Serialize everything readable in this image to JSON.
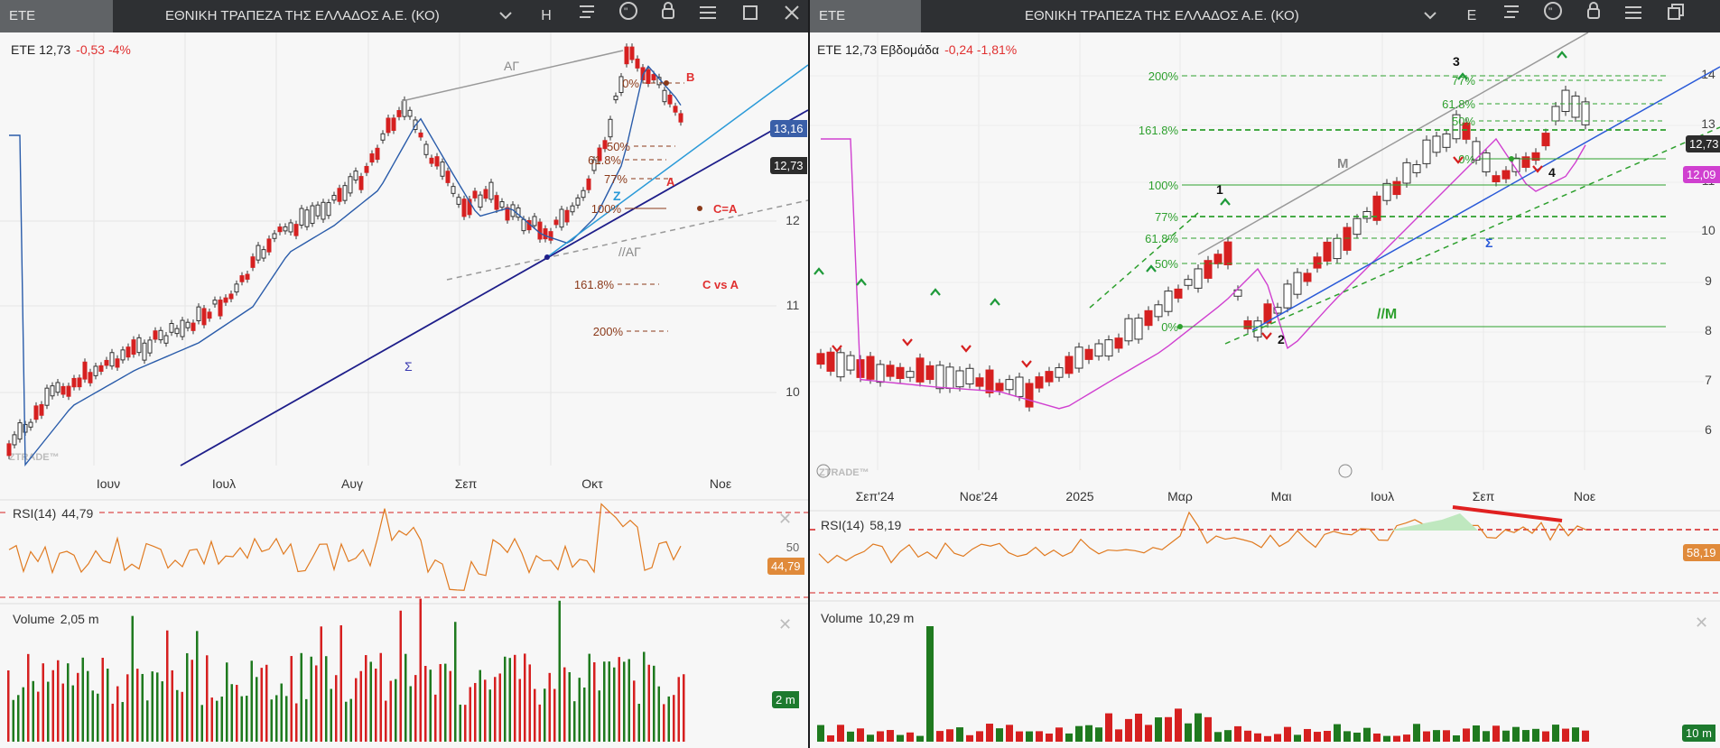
{
  "left": {
    "tab_label": "ΕΤΕ",
    "title": "ΕΘΝΙΚΗ ΤΡΑΠΕΖΑ ΤΗΣ ΕΛΛΑΔΟΣ Α.Ε. (ΚΟ)",
    "period_letter": "Η",
    "header_symbol": "ETE 12,73",
    "header_change": "-0,53 -4%",
    "price_axis": [
      "12",
      "11",
      "10"
    ],
    "badges": {
      "top": "13,16",
      "last": "12,73"
    },
    "time_axis": [
      "Ιουν",
      "Ιουλ",
      "Αυγ",
      "Σεπ",
      "Οκτ",
      "Νοε"
    ],
    "watermark": "ZTRADE™",
    "annotations": {
      "ag": "ΑΓ",
      "parallel_ag": "//ΑΓ",
      "sigma": "Σ",
      "z": "Z",
      "a": "A",
      "b": "B",
      "c_eq_a": "C=A",
      "c_vs_a": "C vs A",
      "fib": [
        "0%",
        "50%",
        "61.8%",
        "77%",
        "100%",
        "161.8%",
        "200%"
      ]
    },
    "rsi": {
      "label": "RSI(14)",
      "value": "44,79",
      "axis": "50",
      "badge": "44,79"
    },
    "volume": {
      "label": "Volume",
      "value": "2,05 m",
      "badge": "2 m"
    }
  },
  "right": {
    "tab_label": "ΕΤΕ",
    "title": "ΕΘΝΙΚΗ ΤΡΑΠΕΖΑ ΤΗΣ ΕΛΛΑΔΟΣ Α.Ε. (ΚΟ)",
    "period_letter": "Ε",
    "header_symbol": "ETE 12,73 Εβδομάδα",
    "header_change": "-0,24 -1,81%",
    "price_axis": [
      "14",
      "13",
      "11",
      "10",
      "9",
      "8",
      "7",
      "6"
    ],
    "badges": {
      "last": "12,73",
      "ma": "12,09"
    },
    "time_axis": [
      "Σεπ'24",
      "Νοε'24",
      "2025",
      "Μαρ",
      "Μαι",
      "Ιουλ",
      "Σεπ",
      "Νοε"
    ],
    "watermark": "ZTRADE™",
    "annotations": {
      "m": "M",
      "parallel_m": "//M",
      "sigma": "Σ",
      "waves": [
        "1",
        "2",
        "3",
        "4"
      ],
      "fib_big": [
        "200%",
        "161.8%",
        "100%",
        "77%",
        "61.8%",
        "50%",
        "0%"
      ],
      "fib_small": [
        "77%",
        "61.8%",
        "50%",
        "0%"
      ]
    },
    "rsi": {
      "label": "RSI(14)",
      "value": "58,19",
      "badge": "58,19"
    },
    "volume": {
      "label": "Volume",
      "value": "10,29 m",
      "badge": "10 m"
    }
  },
  "colors": {
    "up": "#1f7a1f",
    "down": "#d62020",
    "ma_blue": "#2a5caa",
    "ma_magenta": "#d040d0",
    "rsi": "#e07a20",
    "fib_green": "#2ea02e",
    "fib_brown": "#8b3a1a"
  }
}
